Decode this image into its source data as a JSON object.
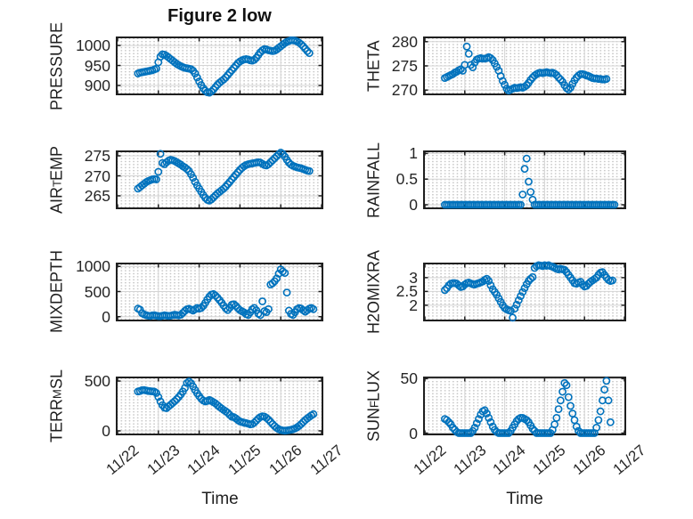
{
  "figure": {
    "title": "Figure 2 low",
    "xlabel": "Time",
    "x_tick_labels": [
      "11/22",
      "11/23",
      "11/24",
      "11/25",
      "11/26",
      "11/27"
    ],
    "marker_color": "#0072BD",
    "axis_color": "#1f1f1f",
    "grid_color": "#d4d4d4",
    "tick_text_color": "#262626"
  },
  "chart_data": {
    "type": "scatter",
    "x_axis": {
      "label": "Time",
      "tick_labels": [
        "11/22",
        "11/23",
        "11/24",
        "11/25",
        "11/26",
        "11/27"
      ],
      "xlim_days": [
        0,
        5
      ],
      "x_start_day": 0.5,
      "x_step_day": 0.05
    },
    "marker": {
      "shape": "circle-open",
      "color": "#0072BD"
    },
    "grid": {
      "major": "solid-light",
      "minor": "dotted"
    },
    "series": [
      {
        "name": "PRESSURE",
        "ylabel": {
          "pre": "PRESSURE",
          "sub": "",
          "post": ""
        },
        "row": 0,
        "col": 0,
        "ylim": [
          880,
          1018
        ],
        "yticks": [
          900,
          950,
          1000
        ],
        "ytick_labels": [
          "900",
          "950",
          "1000"
        ],
        "y": [
          930,
          932,
          933,
          934,
          935,
          936,
          937,
          938,
          940,
          942,
          958,
          972,
          978,
          977,
          974,
          970,
          966,
          962,
          958,
          954,
          951,
          948,
          946,
          944,
          943,
          942,
          941,
          937,
          930,
          920,
          910,
          901,
          893,
          887,
          883,
          882,
          885,
          890,
          896,
          902,
          907,
          911,
          915,
          920,
          926,
          932,
          938,
          944,
          950,
          956,
          960,
          963,
          965,
          966,
          965,
          963,
          962,
          964,
          969,
          976,
          983,
          988,
          991,
          990,
          988,
          987,
          986,
          987,
          990,
          994,
          998,
          1002,
          1006,
          1009,
          1011,
          1013,
          1013,
          1012,
          1010,
          1007,
          1003,
          998,
          992,
          986,
          981,
          null,
          null
        ]
      },
      {
        "name": "THETA",
        "ylabel": {
          "pre": "THETA",
          "sub": "",
          "post": ""
        },
        "row": 0,
        "col": 1,
        "ylim": [
          269.3,
          280.7
        ],
        "yticks": [
          270,
          275,
          280
        ],
        "ytick_labels": [
          "270",
          "275",
          "280"
        ],
        "y": [
          272.5,
          272.7,
          272.9,
          273.1,
          273.3,
          273.6,
          273.8,
          274.1,
          274.3,
          274.0,
          275.2,
          279.0,
          277.5,
          275.2,
          274.7,
          275.7,
          276.3,
          276.5,
          276.6,
          276.5,
          276.5,
          276.6,
          276.8,
          276.6,
          276.2,
          275.5,
          274.8,
          274.0,
          272.9,
          271.9,
          271.1,
          270.3,
          269.9,
          270.1,
          270.3,
          270.5,
          270.4,
          270.5,
          270.6,
          270.5,
          270.7,
          271.0,
          271.5,
          272.1,
          272.6,
          273.0,
          273.3,
          273.5,
          273.6,
          273.5,
          273.6,
          273.7,
          273.6,
          273.5,
          273.6,
          273.4,
          273.1,
          272.6,
          272.2,
          271.7,
          271.0,
          270.4,
          270.1,
          270.5,
          271.3,
          272.0,
          272.6,
          273.0,
          273.3,
          273.3,
          273.2,
          273.0,
          272.9,
          272.7,
          272.5,
          272.4,
          272.4,
          272.3,
          272.3,
          272.2,
          272.2,
          272.3,
          null,
          null,
          null,
          null,
          null
        ]
      },
      {
        "name": "AIR_TEMP",
        "ylabel": {
          "pre": "AIR",
          "sub": "T",
          "post": "EMP"
        },
        "row": 1,
        "col": 0,
        "ylim": [
          262.1,
          275.9
        ],
        "yticks": [
          265,
          270,
          275
        ],
        "ytick_labels": [
          "265",
          "270",
          "275"
        ],
        "y": [
          266.8,
          267.2,
          267.6,
          268.0,
          268.4,
          268.7,
          268.9,
          269.1,
          269.2,
          269.1,
          271.0,
          275.5,
          273.2,
          272.9,
          273.4,
          273.8,
          274.0,
          273.9,
          273.7,
          273.4,
          273.1,
          272.8,
          272.4,
          272.1,
          271.7,
          271.2,
          270.4,
          269.5,
          268.5,
          267.6,
          266.8,
          266.0,
          265.2,
          264.5,
          264.0,
          263.8,
          264.1,
          264.6,
          265.1,
          265.6,
          266.0,
          266.4,
          266.8,
          267.3,
          267.9,
          268.5,
          269.1,
          269.7,
          270.3,
          270.9,
          271.5,
          272.0,
          272.4,
          272.7,
          272.9,
          273.0,
          273.1,
          273.2,
          273.3,
          273.4,
          273.3,
          273.0,
          272.7,
          272.6,
          272.9,
          273.4,
          273.9,
          274.4,
          274.9,
          275.4,
          275.8,
          275.5,
          274.8,
          274.0,
          273.3,
          272.8,
          272.5,
          272.3,
          272.1,
          272.0,
          271.9,
          271.7,
          271.5,
          271.3,
          271.2,
          null,
          null
        ]
      },
      {
        "name": "RAINFALL",
        "ylabel": {
          "pre": "RAINFALL",
          "sub": "",
          "post": ""
        },
        "row": 1,
        "col": 1,
        "ylim": [
          -0.052,
          1.024
        ],
        "yticks": [
          0,
          0.5,
          1
        ],
        "ytick_labels": [
          "0",
          "0.5",
          "1"
        ],
        "y": [
          0,
          0,
          0,
          0,
          0,
          0,
          0,
          0,
          0,
          0,
          0,
          0,
          0,
          0,
          0,
          0,
          0,
          0,
          0,
          0,
          0,
          0,
          0,
          0,
          0,
          0,
          0,
          0,
          0,
          0,
          0,
          0,
          0,
          0,
          0,
          0,
          0,
          0,
          0,
          0.2,
          0.7,
          0.9,
          0.45,
          0.25,
          0.1,
          0,
          0,
          0,
          0,
          0,
          0,
          0,
          0,
          0,
          0,
          0,
          0,
          0,
          0,
          0,
          0,
          0,
          0,
          0,
          0,
          0,
          0,
          0,
          0,
          0,
          0,
          0,
          0,
          0,
          0,
          0,
          0,
          0,
          0,
          0,
          0,
          0,
          0,
          0,
          0,
          0,
          null
        ]
      },
      {
        "name": "MIXDEPTH",
        "ylabel": {
          "pre": "MIXDEPTH",
          "sub": "",
          "post": ""
        },
        "row": 2,
        "col": 0,
        "ylim": [
          -58,
          1040
        ],
        "yticks": [
          0,
          500,
          1000
        ],
        "ytick_labels": [
          "0",
          "500",
          "1000"
        ],
        "y": [
          160,
          140,
          70,
          45,
          30,
          20,
          15,
          25,
          30,
          20,
          12,
          10,
          20,
          28,
          22,
          15,
          20,
          30,
          38,
          32,
          25,
          40,
          75,
          115,
          148,
          158,
          140,
          122,
          148,
          175,
          160,
          172,
          215,
          275,
          340,
          400,
          440,
          450,
          420,
          378,
          330,
          278,
          220,
          165,
          132,
          178,
          238,
          248,
          215,
          168,
          130,
          108,
          85,
          50,
          35,
          85,
          148,
          175,
          128,
          60,
          32,
          305,
          110,
          90,
          150,
          640,
          665,
          705,
          760,
          855,
          940,
          900,
          870,
          480,
          120,
          55,
          35,
          90,
          150,
          172,
          160,
          128,
          100,
          130,
          160,
          175,
          150
        ]
      },
      {
        "name": "H2OMIXRA",
        "ylabel": {
          "pre": "H2OMIXRA",
          "sub": "",
          "post": ""
        },
        "row": 2,
        "col": 1,
        "ylim": [
          1.48,
          3.48
        ],
        "yticks": [
          2,
          2.5,
          3
        ],
        "ytick_labels": [
          "2",
          "2.5",
          "3"
        ],
        "y": [
          2.55,
          2.62,
          2.72,
          2.78,
          2.8,
          2.8,
          2.78,
          2.72,
          2.66,
          2.68,
          2.75,
          2.8,
          2.82,
          2.79,
          2.76,
          2.75,
          2.78,
          2.8,
          2.83,
          2.86,
          2.92,
          2.96,
          2.88,
          2.72,
          2.58,
          2.48,
          2.38,
          2.25,
          2.12,
          2.0,
          1.9,
          1.85,
          1.82,
          1.8,
          1.55,
          1.88,
          2.02,
          2.18,
          2.33,
          2.48,
          2.62,
          2.76,
          2.88,
          2.96,
          3.02,
          3.35,
          3.42,
          3.45,
          3.44,
          3.42,
          3.45,
          3.43,
          3.45,
          3.42,
          3.4,
          3.36,
          3.32,
          3.3,
          3.32,
          3.3,
          3.28,
          3.2,
          3.1,
          3.0,
          2.9,
          2.8,
          2.78,
          2.82,
          2.85,
          2.75,
          2.68,
          2.7,
          2.78,
          2.85,
          2.9,
          2.95,
          3.0,
          3.1,
          3.18,
          3.2,
          3.1,
          3.0,
          2.92,
          2.88,
          2.9,
          null,
          null
        ]
      },
      {
        "name": "TERR_MSL",
        "ylabel": {
          "pre": "TERR",
          "sub": "M",
          "post": "SL"
        },
        "row": 3,
        "col": 0,
        "ylim": [
          -27,
          527
        ],
        "yticks": [
          0,
          500
        ],
        "ytick_labels": [
          "0",
          "500"
        ],
        "y": [
          395,
          400,
          408,
          410,
          405,
          400,
          398,
          396,
          394,
          380,
          340,
          295,
          258,
          232,
          228,
          245,
          262,
          280,
          298,
          318,
          340,
          365,
          395,
          430,
          480,
          495,
          478,
          445,
          410,
          378,
          348,
          322,
          305,
          295,
          300,
          310,
          300,
          288,
          275,
          258,
          240,
          225,
          210,
          196,
          182,
          160,
          142,
          138,
          125,
          108,
          95,
          88,
          82,
          78,
          72,
          65,
          68,
          82,
          102,
          122,
          138,
          146,
          143,
          130,
          112,
          90,
          68,
          48,
          30,
          16,
          8,
          4,
          2,
          4,
          7,
          11,
          16,
          24,
          35,
          50,
          68,
          88,
          108,
          125,
          140,
          155,
          168
        ]
      },
      {
        "name": "SUN_FLUX",
        "ylabel": {
          "pre": "SUN",
          "sub": "F",
          "post": "LUX"
        },
        "row": 3,
        "col": 1,
        "ylim": [
          -0.4,
          50.3
        ],
        "yticks": [
          0,
          50
        ],
        "ytick_labels": [
          "0",
          "50"
        ],
        "y": [
          13,
          12,
          10,
          8,
          5,
          3,
          1,
          0,
          0,
          0,
          0,
          0,
          0,
          0,
          2,
          5,
          9,
          13,
          17,
          20,
          21,
          18,
          14,
          10,
          6,
          3,
          1,
          0,
          0,
          0,
          0,
          0,
          0,
          2,
          5,
          8,
          11,
          13,
          14,
          14,
          13,
          12,
          10,
          7,
          4,
          2,
          0,
          0,
          0,
          0,
          0,
          0,
          0,
          0,
          3,
          8,
          14,
          22,
          30,
          38,
          46,
          44,
          33,
          25,
          18,
          12,
          6,
          2,
          0,
          0,
          0,
          0,
          0,
          0,
          0,
          0,
          5,
          12,
          20,
          30,
          40,
          48,
          30,
          10,
          null,
          null,
          null
        ]
      }
    ]
  }
}
